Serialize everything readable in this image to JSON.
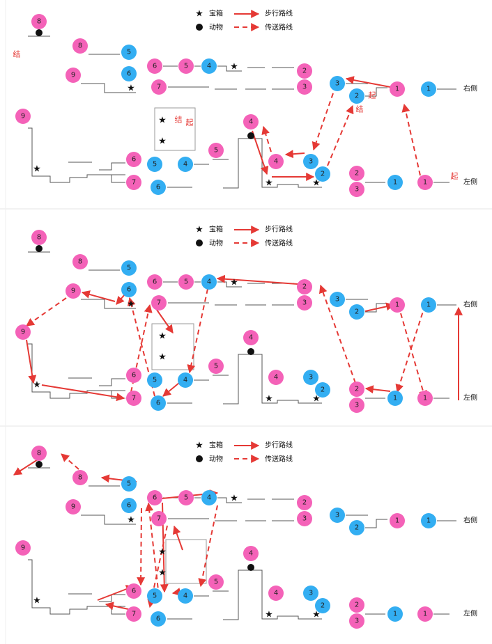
{
  "legend": {
    "treasure_label": "宝箱",
    "animal_label": "动物",
    "walk_label": "步行路线",
    "teleport_label": "传送路线"
  },
  "labels": {
    "right_side": "右侧",
    "left_side": "左侧",
    "start": "起",
    "end": "结"
  },
  "colors": {
    "pink": "#f462b8",
    "blue": "#33aef2",
    "arrow": "#e53935",
    "line": "#555555"
  },
  "icons": {
    "treasure": "star-icon",
    "animal": "black-dot-icon"
  }
}
